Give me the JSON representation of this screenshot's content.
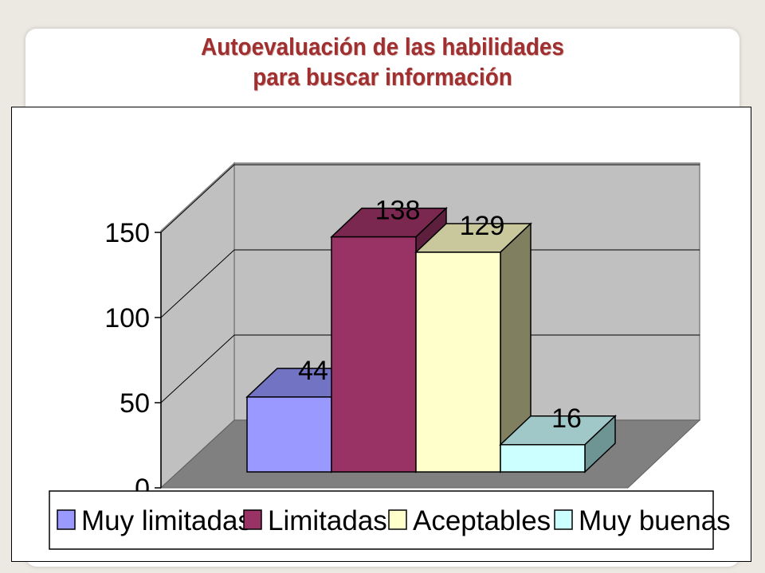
{
  "title": {
    "line1": "Autoevaluación de las habilidades",
    "line2": "para buscar información"
  },
  "chart_data": {
    "type": "bar",
    "title": "Autoevaluación de las habilidades para buscar información",
    "categories": [
      "Muy limitadas",
      "Limitadas",
      "Aceptables",
      "Muy buenas"
    ],
    "values": [
      44,
      138,
      129,
      16
    ],
    "data_labels": [
      "44",
      "138",
      "129",
      "16"
    ],
    "colors": {
      "front": [
        "#9999ff",
        "#993366",
        "#ffffcc",
        "#ccffff"
      ],
      "top": [
        "#7373c4",
        "#7a2850",
        "#c8c89c",
        "#a0c8c8"
      ],
      "side": [
        "#6666a8",
        "#5e1e3e",
        "#808060",
        "#6e9494"
      ]
    },
    "ylim": [
      0,
      150
    ],
    "yticks": [
      0,
      50,
      100,
      150
    ],
    "xlabel": "",
    "ylabel": "",
    "grid": true,
    "legend": "bottom",
    "style": "3d-column"
  }
}
